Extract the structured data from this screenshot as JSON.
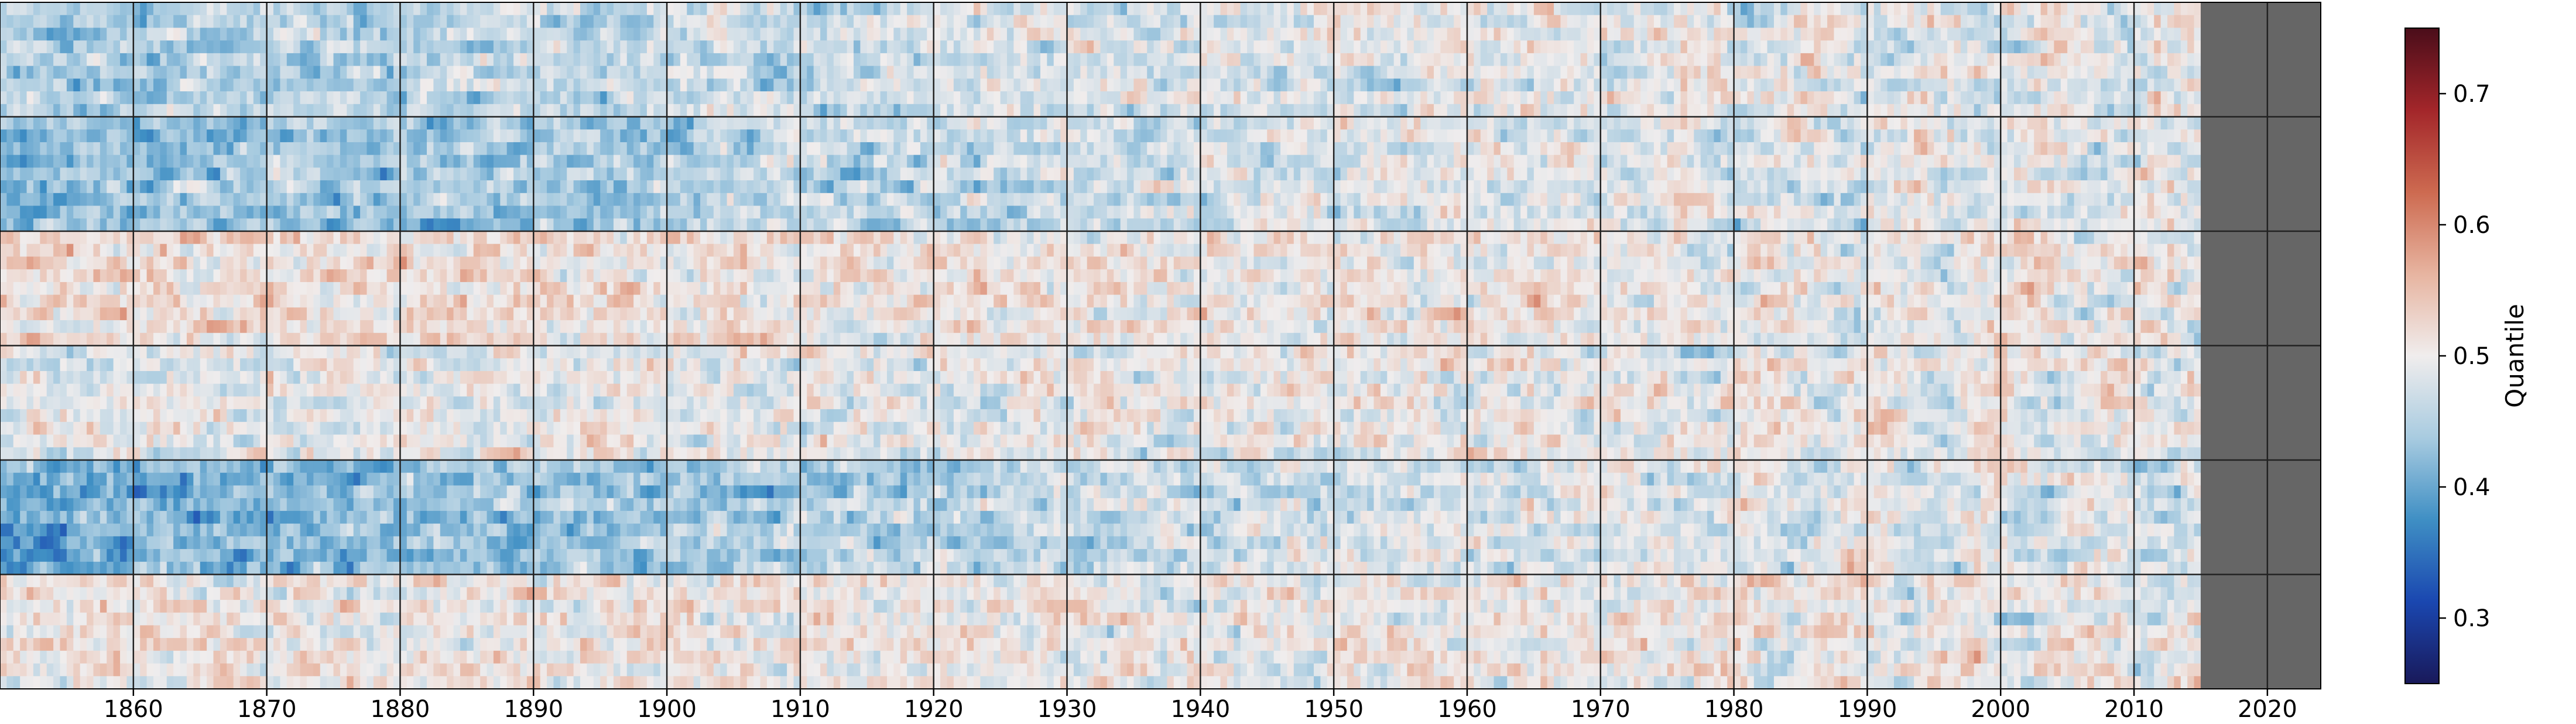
{
  "chart_data": {
    "type": "heatmap",
    "title": "",
    "xlabel": "",
    "ylabel": "",
    "x_range": [
      1850,
      2024
    ],
    "x_ticks": [
      1860,
      1870,
      1880,
      1890,
      1900,
      1910,
      1920,
      1930,
      1940,
      1950,
      1960,
      1970,
      1980,
      1990,
      2000,
      2010,
      2020
    ],
    "data_end_year": 2015,
    "rows": 6,
    "grid": true,
    "missing_color": "#666666",
    "colormap": {
      "name": "diverging blue-white-red",
      "vmin": 0.25,
      "vmax": 0.75,
      "stops": [
        "#19195a",
        "#1a47b0",
        "#3f8fc4",
        "#a8cbe0",
        "#f0eded",
        "#e7b4a0",
        "#cd6a50",
        "#a3262a",
        "#4a0d1a"
      ]
    },
    "colorbar": {
      "label": "Quantile",
      "ticks": [
        0.3,
        0.4,
        0.5,
        0.6,
        0.7
      ]
    },
    "row_tendency": [
      {
        "row": 1,
        "mean_quantile": 0.44
      },
      {
        "row": 2,
        "mean_quantile": 0.42
      },
      {
        "row": 3,
        "mean_quantile": 0.52
      },
      {
        "row": 4,
        "mean_quantile": 0.49
      },
      {
        "row": 5,
        "mean_quantile": 0.4
      },
      {
        "row": 6,
        "mean_quantile": 0.51
      }
    ]
  }
}
